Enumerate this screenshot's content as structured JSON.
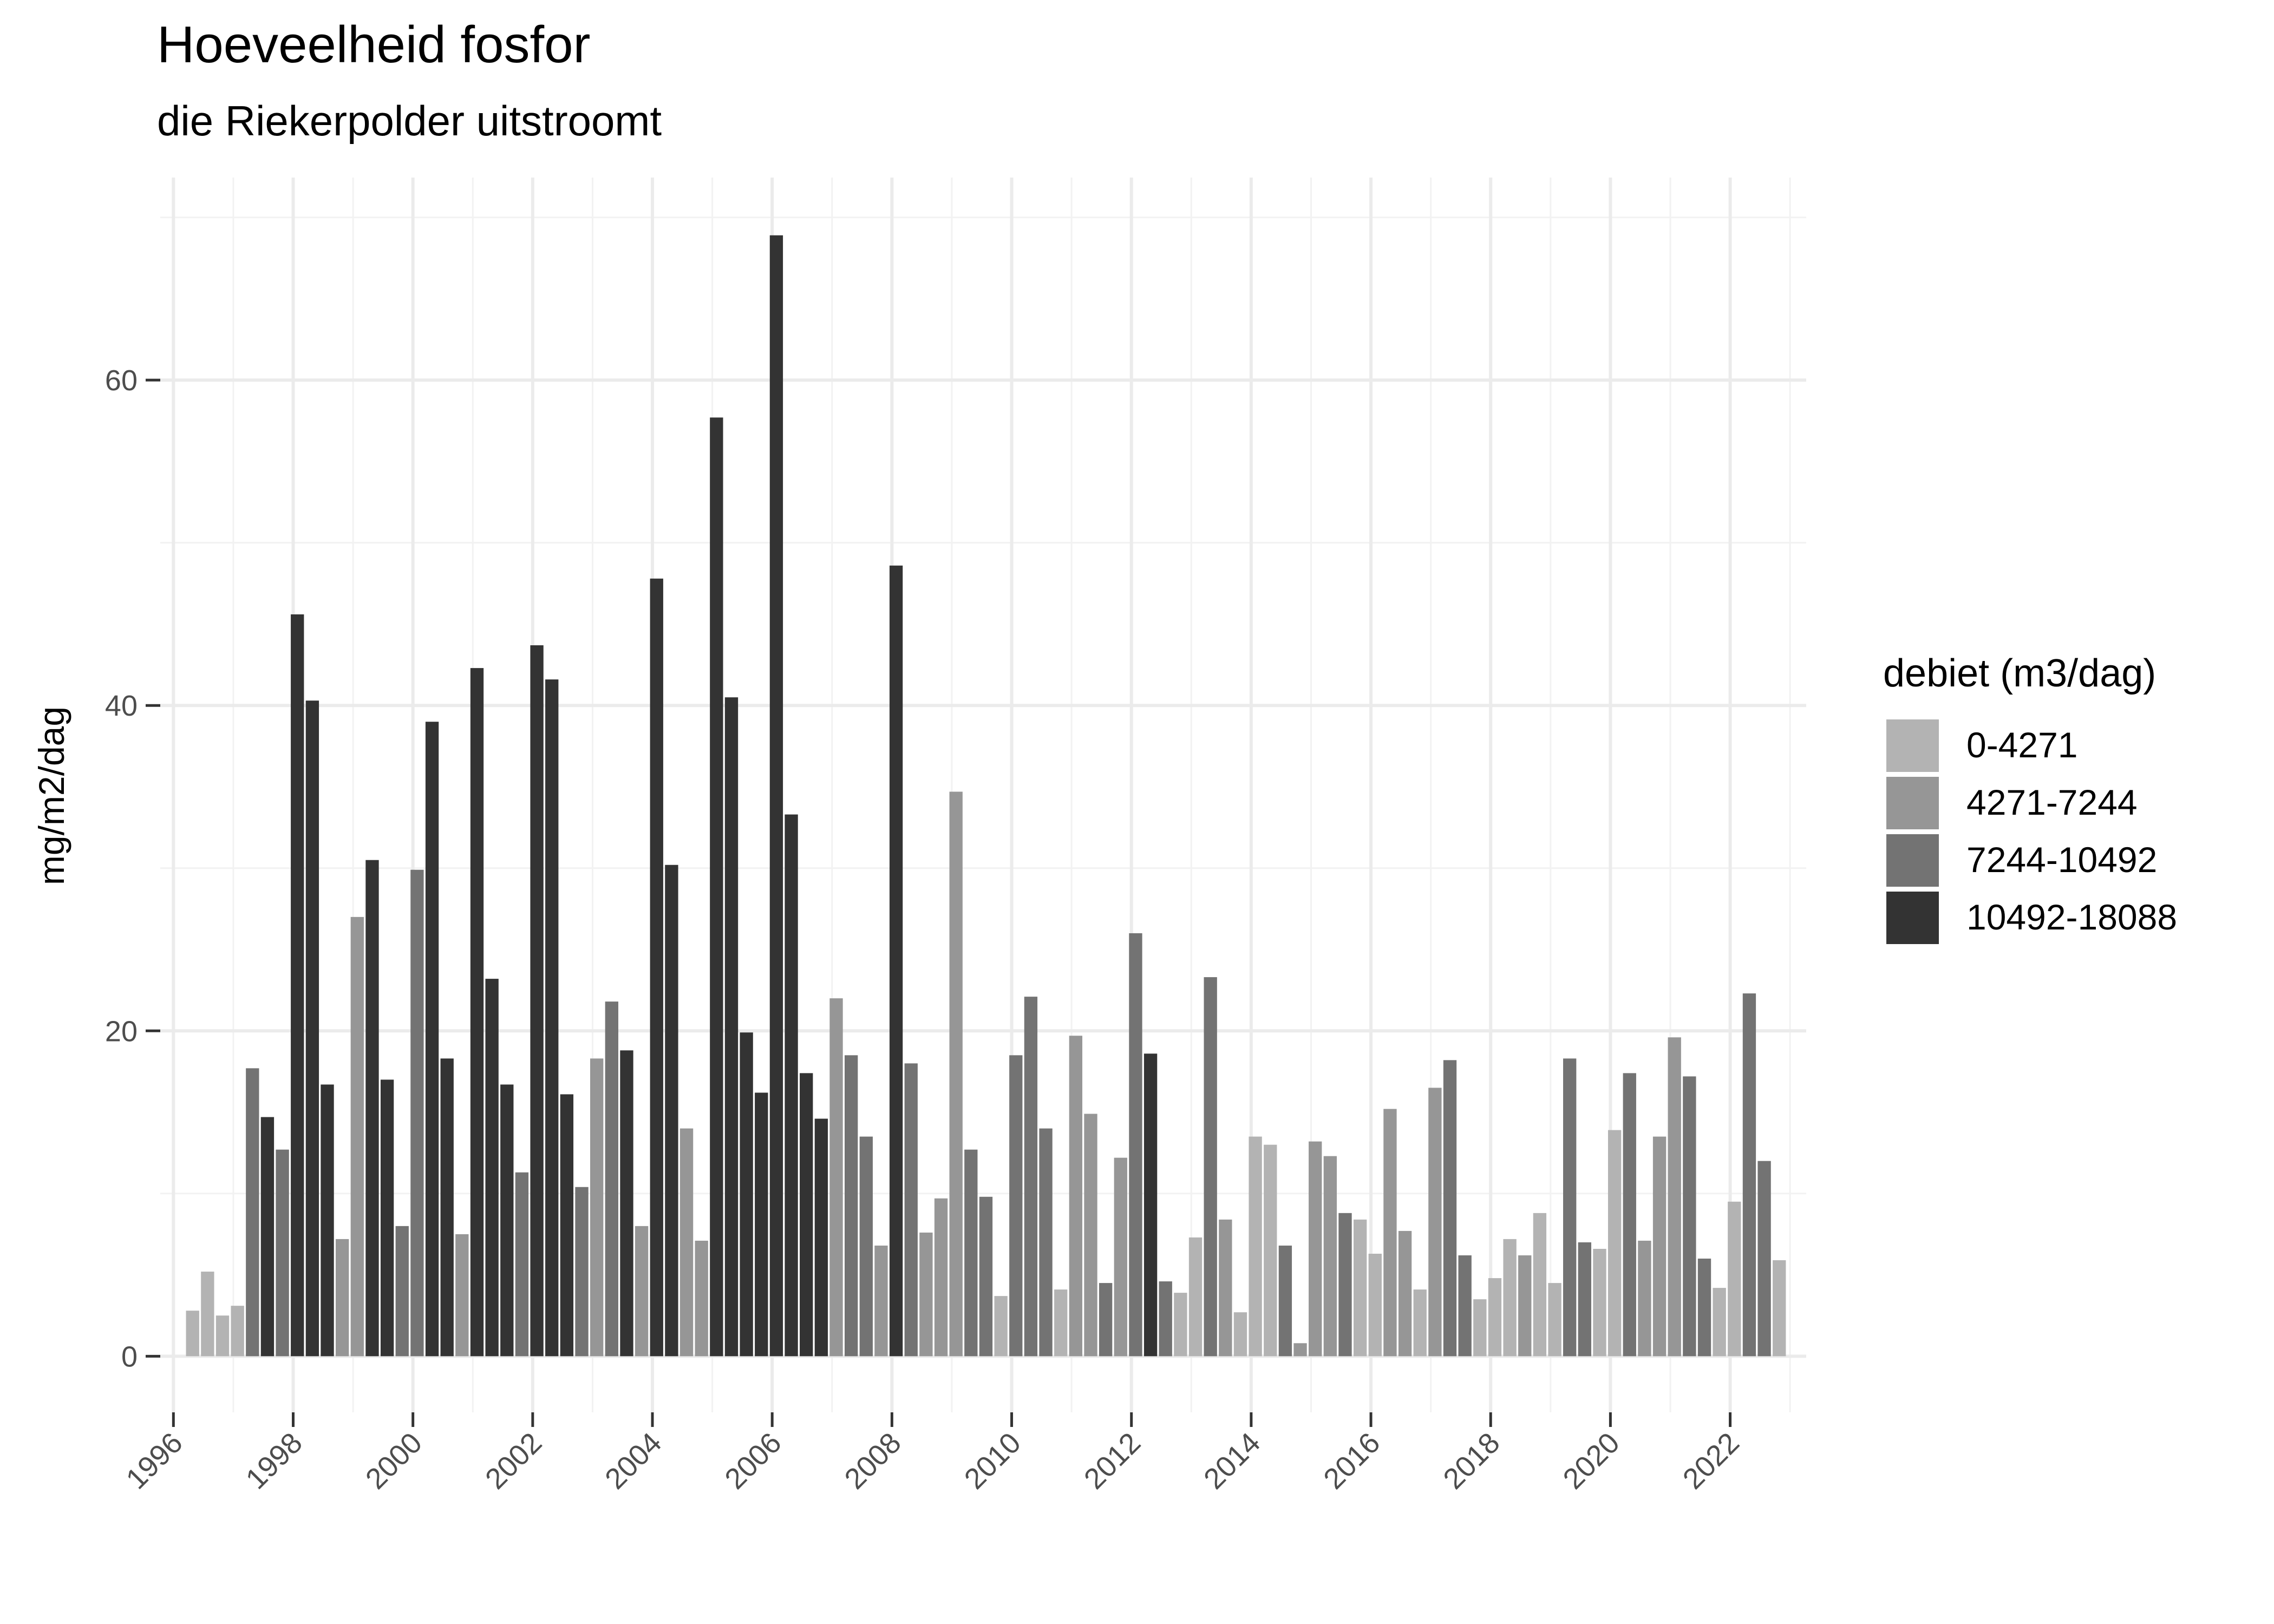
{
  "chart_data": {
    "type": "bar",
    "title": "Hoeveelheid fosfor",
    "subtitle": "die Riekerpolder uitstroomt",
    "y_label": "mg/m2/dag",
    "legend_title": "debiet (m3/dag)",
    "legend_position": "right",
    "grid": true,
    "xlim": [
      1995.78,
      2023.27
    ],
    "xticks": [
      1996,
      1998,
      2000,
      2002,
      2004,
      2006,
      2008,
      2010,
      2012,
      2014,
      2016,
      2018,
      2020,
      2022
    ],
    "ylim": [
      -3.45,
      72.45
    ],
    "yticks": [
      0,
      20,
      40,
      60
    ],
    "series": [
      {
        "name": "0-4271",
        "color": "#b3b3b3",
        "x": [
          1996.32,
          1996.57,
          1996.82,
          1997.07,
          2009.82,
          2010.82,
          2012.82,
          2013.07,
          2013.82,
          2014.07,
          2014.32,
          2015.82,
          2016.07,
          2016.82,
          2017.82,
          2018.07,
          2018.32,
          2018.82,
          2019.07,
          2019.82,
          2020.07,
          2021.82,
          2022.07,
          2022.82
        ],
        "values": [
          2.8,
          5.2,
          2.5,
          3.1,
          3.7,
          4.1,
          3.9,
          7.3,
          2.7,
          13.5,
          13.0,
          8.4,
          6.3,
          4.1,
          3.5,
          4.8,
          7.2,
          8.8,
          4.5,
          6.6,
          13.9,
          4.2,
          9.5,
          5.9
        ]
      },
      {
        "name": "4271-7244",
        "color": "#969696",
        "x": [
          1998.82,
          1999.07,
          2000.82,
          2003.07,
          2003.82,
          2004.57,
          2004.82,
          2007.07,
          2007.82,
          2008.57,
          2008.82,
          2009.07,
          2011.07,
          2011.32,
          2011.82,
          2013.57,
          2014.82,
          2015.07,
          2015.32,
          2016.32,
          2016.57,
          2017.07,
          2018.57,
          2020.57,
          2020.82,
          2021.07
        ],
        "values": [
          7.2,
          27.0,
          7.5,
          18.3,
          8.0,
          14.0,
          7.1,
          22.0,
          6.8,
          7.6,
          9.7,
          34.7,
          19.7,
          14.9,
          12.2,
          8.4,
          0.8,
          13.2,
          12.3,
          15.2,
          7.7,
          16.5,
          6.2,
          7.1,
          13.5,
          19.6
        ]
      },
      {
        "name": "7244-10492",
        "color": "#737373",
        "x": [
          1997.32,
          1997.82,
          1999.82,
          2000.07,
          2001.82,
          2002.82,
          2003.32,
          2007.32,
          2007.57,
          2008.32,
          2009.32,
          2009.57,
          2010.07,
          2010.32,
          2010.57,
          2011.57,
          2012.07,
          2012.57,
          2013.32,
          2014.57,
          2015.57,
          2017.32,
          2017.57,
          2019.32,
          2019.57,
          2020.32,
          2021.32,
          2021.57,
          2022.32,
          2022.57
        ],
        "values": [
          17.7,
          12.7,
          8.0,
          29.9,
          11.3,
          10.4,
          21.8,
          18.5,
          13.5,
          18.0,
          12.7,
          9.8,
          18.5,
          22.1,
          14.0,
          4.5,
          26.0,
          4.6,
          23.3,
          6.8,
          8.8,
          18.2,
          6.2,
          18.3,
          7.0,
          17.4,
          17.2,
          6.0,
          22.3,
          12.0
        ]
      },
      {
        "name": "10492-18088",
        "color": "#333333",
        "x": [
          1997.57,
          1998.07,
          1998.32,
          1998.57,
          1999.32,
          1999.57,
          2000.32,
          2000.57,
          2001.07,
          2001.32,
          2001.57,
          2002.07,
          2002.32,
          2002.57,
          2003.57,
          2004.07,
          2004.32,
          2005.07,
          2005.32,
          2005.57,
          2005.82,
          2006.07,
          2006.32,
          2006.57,
          2006.82,
          2008.07,
          2012.32
        ],
        "values": [
          14.7,
          45.6,
          40.3,
          16.7,
          30.5,
          17.0,
          39.0,
          18.3,
          42.3,
          23.2,
          16.7,
          43.7,
          41.6,
          16.1,
          18.8,
          47.8,
          30.2,
          57.7,
          40.5,
          19.9,
          16.2,
          68.9,
          33.3,
          17.4,
          14.6,
          48.6,
          18.6
        ]
      }
    ]
  }
}
